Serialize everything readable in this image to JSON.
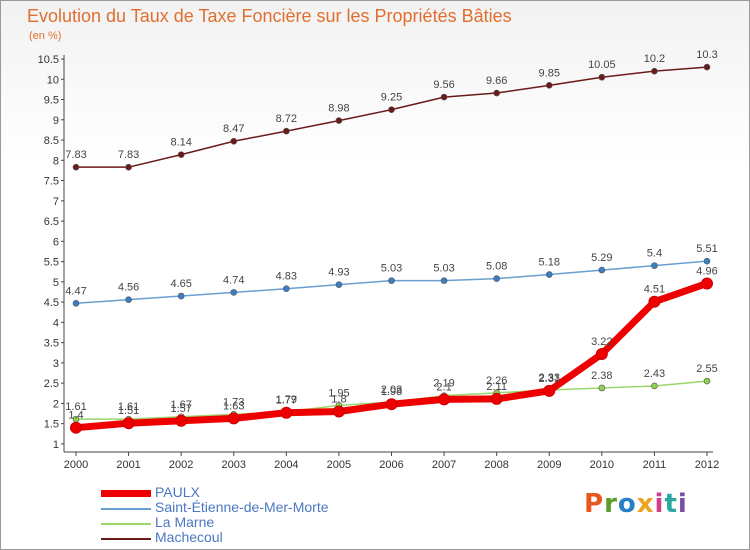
{
  "header": {
    "title": "Evolution du Taux de Taxe Foncière sur les Propriétés Bâties",
    "unit": "(en %)"
  },
  "logo": {
    "text": "Proxiti",
    "colors": [
      "#e8571e",
      "#5a9e2a",
      "#2a7fc4",
      "#e8a61e",
      "#d43c8c",
      "#2aa8a0",
      "#7a4ca8"
    ]
  },
  "chart_data": {
    "type": "line",
    "x": [
      "2000",
      "2001",
      "2002",
      "2003",
      "2004",
      "2005",
      "2006",
      "2007",
      "2008",
      "2009",
      "2010",
      "2011",
      "2012"
    ],
    "yticks": [
      "1",
      "1.5",
      "2",
      "2.5",
      "3",
      "3.5",
      "4",
      "4.5",
      "5",
      "5.5",
      "6",
      "6.5",
      "7",
      "7.5",
      "8",
      "8.5",
      "9",
      "9.5",
      "10",
      "10.5"
    ],
    "ylim": [
      0.8,
      10.5
    ],
    "grid": false,
    "series": [
      {
        "name": "Machecoul",
        "color": "#6b1a1a",
        "marker": "#6b1a1a",
        "values": [
          7.83,
          7.83,
          8.14,
          8.47,
          8.72,
          8.98,
          9.25,
          9.56,
          9.66,
          9.85,
          10.05,
          10.2,
          10.3
        ],
        "labels": [
          "7.83",
          "7.83",
          "8.14",
          "8.47",
          "8.72",
          "8.98",
          "9.25",
          "9.56",
          "9.66",
          "9.85",
          "10.05",
          "10.2",
          "10.3"
        ]
      },
      {
        "name": "Saint-Étienne-de-Mer-Morte",
        "color": "#6a9fd0",
        "marker": "#3a7fc4",
        "values": [
          4.47,
          4.56,
          4.65,
          4.74,
          4.83,
          4.93,
          5.03,
          5.03,
          5.08,
          5.18,
          5.29,
          5.4,
          5.51
        ],
        "labels": [
          "4.47",
          "4.56",
          "4.65",
          "4.74",
          "4.83",
          "4.93",
          "5.03",
          "5.03",
          "5.08",
          "5.18",
          "5.29",
          "5.4",
          "5.51"
        ]
      },
      {
        "name": "La Marne",
        "color": "#9ad66a",
        "marker": "#8cd24a",
        "values": [
          1.61,
          1.61,
          1.67,
          1.73,
          1.79,
          1.95,
          2.03,
          2.19,
          2.26,
          2.33,
          2.38,
          2.43,
          2.55
        ],
        "labels": [
          "1.61",
          "1.61",
          "1.67",
          "1.73",
          "1.79",
          "1.95",
          "2.03",
          "2.19",
          "2.26",
          "2.33",
          "2.38",
          "2.43",
          "2.55"
        ]
      },
      {
        "name": "PAULX",
        "color": "#ee0000",
        "marker": "#ee0000",
        "values": [
          1.4,
          1.51,
          1.57,
          1.63,
          1.77,
          1.8,
          1.98,
          2.1,
          2.11,
          2.31,
          3.22,
          4.51,
          4.96
        ],
        "labels": [
          "1.4",
          "1.51",
          "1.57",
          "1.63",
          "1.77",
          "1.8",
          "1.98",
          "2.1",
          "2.11",
          "2.31",
          "3.22",
          "4.51",
          "4.96"
        ]
      }
    ],
    "legend": [
      {
        "name": "PAULX",
        "color": "#ee0000"
      },
      {
        "name": "Saint-Étienne-de-Mer-Morte",
        "color": "#6a9fd0"
      },
      {
        "name": "La Marne",
        "color": "#9ad66a"
      },
      {
        "name": "Machecoul",
        "color": "#6b1a1a"
      }
    ]
  }
}
